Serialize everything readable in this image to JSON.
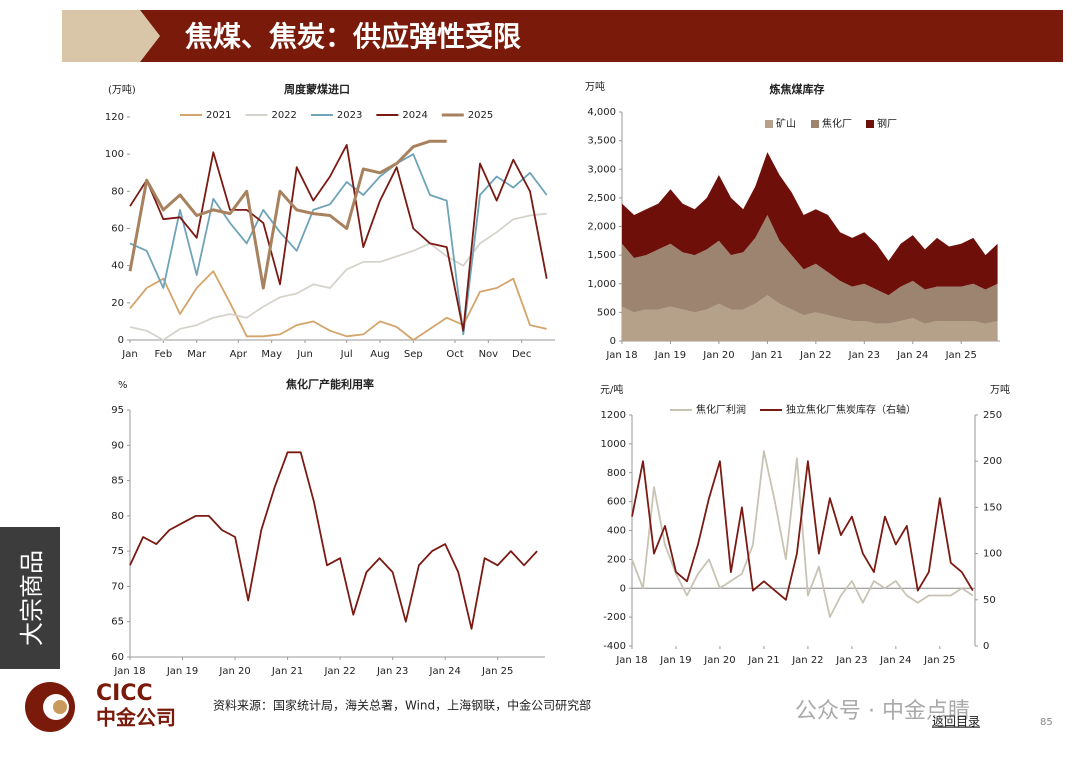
{
  "header": {
    "title": "焦煤、焦炭：供应弹性受限"
  },
  "side_label": "大宗商品",
  "chart_data": [
    {
      "type": "line",
      "title": "周度蒙煤进口",
      "y_label": "(万吨)",
      "x": [
        1,
        3,
        5,
        7,
        9,
        11,
        13,
        15,
        17,
        19,
        21,
        23,
        25,
        27,
        29,
        31,
        33,
        35,
        37,
        39,
        41,
        43,
        45,
        47,
        49,
        51
      ],
      "xlim": [
        1,
        52
      ],
      "xticks": [
        {
          "value": 1,
          "label": "Jan"
        },
        {
          "value": 5,
          "label": "Feb"
        },
        {
          "value": 9,
          "label": "Mar"
        },
        {
          "value": 14,
          "label": "Apr"
        },
        {
          "value": 18,
          "label": "May"
        },
        {
          "value": 22,
          "label": "Jun"
        },
        {
          "value": 27,
          "label": "Jul"
        },
        {
          "value": 31,
          "label": "Aug"
        },
        {
          "value": 35,
          "label": "Sep"
        },
        {
          "value": 40,
          "label": "Oct"
        },
        {
          "value": 44,
          "label": "Nov"
        },
        {
          "value": 48,
          "label": "Dec"
        }
      ],
      "ylim": [
        0,
        120
      ],
      "yticks": [
        0,
        20,
        40,
        60,
        80,
        100,
        120
      ],
      "series": [
        {
          "name": "2021",
          "color": "#d4a46a",
          "values": [
            17,
            28,
            33,
            14,
            28,
            37,
            20,
            2,
            2,
            3,
            8,
            10,
            5,
            2,
            3,
            10,
            7,
            0,
            6,
            12,
            8,
            26,
            28,
            33,
            8,
            6
          ]
        },
        {
          "name": "2022",
          "color": "#d6d3cc",
          "values": [
            7,
            5,
            0,
            6,
            8,
            12,
            14,
            12,
            18,
            23,
            25,
            30,
            28,
            38,
            42,
            42,
            45,
            48,
            52,
            45,
            40,
            52,
            58,
            65,
            67,
            68
          ]
        },
        {
          "name": "2023",
          "color": "#6fa3b8",
          "values": [
            52,
            48,
            28,
            70,
            35,
            76,
            63,
            52,
            70,
            58,
            48,
            70,
            73,
            85,
            78,
            88,
            95,
            100,
            78,
            75,
            3,
            78,
            88,
            82,
            90,
            78
          ]
        },
        {
          "name": "2024",
          "color": "#7a1a12",
          "values": [
            72,
            86,
            65,
            66,
            55,
            101,
            70,
            70,
            63,
            30,
            93,
            75,
            88,
            105,
            50,
            75,
            93,
            60,
            52,
            50,
            5,
            95,
            75,
            97,
            80,
            33
          ]
        },
        {
          "name": "2025",
          "color": "#a8825e",
          "values": [
            37,
            86,
            70,
            78,
            67,
            70,
            68,
            80,
            28,
            80,
            70,
            68,
            67,
            60,
            92,
            90,
            95,
            104,
            107,
            107,
            null,
            null,
            null,
            null,
            null,
            null
          ]
        }
      ]
    },
    {
      "type": "area",
      "title": "炼焦煤库存",
      "y_label": "万吨",
      "x": [
        2018,
        2018.25,
        2018.5,
        2018.75,
        2019,
        2019.25,
        2019.5,
        2019.75,
        2020,
        2020.25,
        2020.5,
        2020.75,
        2021,
        2021.25,
        2021.5,
        2021.75,
        2022,
        2022.25,
        2022.5,
        2022.75,
        2023,
        2023.25,
        2023.5,
        2023.75,
        2024,
        2024.25,
        2024.5,
        2024.75,
        2025,
        2025.25,
        2025.5,
        2025.75
      ],
      "xlim": [
        2018,
        2025.8
      ],
      "xticks": [
        {
          "value": 2018,
          "label": "Jan 18"
        },
        {
          "value": 2019,
          "label": "Jan 19"
        },
        {
          "value": 2020,
          "label": "Jan 20"
        },
        {
          "value": 2021,
          "label": "Jan 21"
        },
        {
          "value": 2022,
          "label": "Jan 22"
        },
        {
          "value": 2023,
          "label": "Jan 23"
        },
        {
          "value": 2024,
          "label": "Jan 24"
        },
        {
          "value": 2025,
          "label": "Jan 25"
        }
      ],
      "ylim": [
        0,
        4000
      ],
      "yticks": [
        0,
        500,
        {
          "value": 1000,
          "label": "1,000"
        },
        {
          "value": 1500,
          "label": "1,500"
        },
        {
          "value": 2000,
          "label": "2,000"
        },
        {
          "value": 2500,
          "label": "2,500"
        },
        {
          "value": 3000,
          "label": "3,000"
        },
        {
          "value": 3500,
          "label": "3,500"
        },
        {
          "value": 4000,
          "label": "4,000"
        }
      ],
      "series": [
        {
          "name": "矿山",
          "color": "#b5a08a",
          "values": [
            600,
            500,
            550,
            550,
            600,
            550,
            500,
            550,
            650,
            550,
            550,
            650,
            800,
            650,
            550,
            450,
            500,
            450,
            400,
            350,
            350,
            300,
            300,
            350,
            400,
            300,
            350,
            350,
            350,
            350,
            300,
            350
          ]
        },
        {
          "name": "焦化厂",
          "color": "#9c8471",
          "values": [
            1100,
            950,
            950,
            1050,
            1100,
            1000,
            1000,
            1050,
            1100,
            950,
            1000,
            1150,
            1400,
            1100,
            950,
            800,
            850,
            750,
            650,
            600,
            650,
            600,
            500,
            600,
            650,
            600,
            600,
            600,
            600,
            650,
            600,
            650
          ]
        },
        {
          "name": "钢厂",
          "color": "#6e0f0a",
          "values": [
            700,
            750,
            800,
            800,
            950,
            850,
            800,
            900,
            1150,
            1000,
            750,
            900,
            1100,
            1150,
            1100,
            950,
            950,
            1000,
            850,
            850,
            900,
            800,
            600,
            750,
            800,
            700,
            850,
            700,
            750,
            800,
            600,
            700
          ]
        }
      ]
    },
    {
      "type": "line",
      "title": "焦化厂产能利用率",
      "y_label": "%",
      "x": [
        2018,
        2018.25,
        2018.5,
        2018.75,
        2019,
        2019.25,
        2019.5,
        2019.75,
        2020,
        2020.25,
        2020.5,
        2020.75,
        2021,
        2021.25,
        2021.5,
        2021.75,
        2022,
        2022.25,
        2022.5,
        2022.75,
        2023,
        2023.25,
        2023.5,
        2023.75,
        2024,
        2024.25,
        2024.5,
        2024.75,
        2025,
        2025.25,
        2025.5,
        2025.75
      ],
      "xlim": [
        2018,
        2025.9
      ],
      "xticks": [
        {
          "value": 2018,
          "label": "Jan 18"
        },
        {
          "value": 2019,
          "label": "Jan 19"
        },
        {
          "value": 2020,
          "label": "Jan 20"
        },
        {
          "value": 2021,
          "label": "Jan 21"
        },
        {
          "value": 2022,
          "label": "Jan 22"
        },
        {
          "value": 2023,
          "label": "Jan 23"
        },
        {
          "value": 2024,
          "label": "Jan 24"
        },
        {
          "value": 2025,
          "label": "Jan 25"
        }
      ],
      "ylim": [
        60,
        95
      ],
      "yticks": [
        60,
        65,
        70,
        75,
        80,
        85,
        90,
        95
      ],
      "series": [
        {
          "name": "焦化厂产能利用率",
          "color": "#7a1a12",
          "values": [
            73,
            77,
            76,
            78,
            79,
            80,
            80,
            78,
            77,
            68,
            78,
            84,
            89,
            89,
            82,
            73,
            74,
            66,
            72,
            74,
            72,
            65,
            73,
            75,
            76,
            72,
            64,
            74,
            73,
            75,
            73,
            75
          ]
        }
      ]
    },
    {
      "type": "line",
      "y_label": "元/吨",
      "y2_label": "万吨",
      "x": [
        2018,
        2018.25,
        2018.5,
        2018.75,
        2019,
        2019.25,
        2019.5,
        2019.75,
        2020,
        2020.25,
        2020.5,
        2020.75,
        2021,
        2021.25,
        2021.5,
        2021.75,
        2022,
        2022.25,
        2022.5,
        2022.75,
        2023,
        2023.25,
        2023.5,
        2023.75,
        2024,
        2024.25,
        2024.5,
        2024.75,
        2025,
        2025.25,
        2025.5,
        2025.75
      ],
      "xlim": [
        2018,
        2025.8
      ],
      "xticks": [
        {
          "value": 2018,
          "label": "Jan 18"
        },
        {
          "value": 2019,
          "label": "Jan 19"
        },
        {
          "value": 2020,
          "label": "Jan 20"
        },
        {
          "value": 2021,
          "label": "Jan 21"
        },
        {
          "value": 2022,
          "label": "Jan 22"
        },
        {
          "value": 2023,
          "label": "Jan 23"
        },
        {
          "value": 2024,
          "label": "Jan 24"
        },
        {
          "value": 2025,
          "label": "Jan 25"
        }
      ],
      "ylim": [
        -400,
        1200
      ],
      "yticks": [
        -400,
        -200,
        0,
        200,
        400,
        600,
        800,
        1000,
        1200
      ],
      "y2lim": [
        0,
        250
      ],
      "y2ticks": [
        0,
        50,
        100,
        150,
        200,
        250
      ],
      "series": [
        {
          "name": "焦化厂利润",
          "color": "#c9c3b4",
          "values": [
            200,
            0,
            700,
            300,
            100,
            -50,
            100,
            200,
            0,
            50,
            100,
            300,
            950,
            600,
            200,
            900,
            -50,
            150,
            -200,
            -50,
            50,
            -100,
            50,
            0,
            50,
            -50,
            -100,
            -50,
            -50,
            -50,
            0,
            -50
          ]
        },
        {
          "name": "独立焦化厂焦炭库存（右轴）",
          "color": "#7a1a12",
          "axis": "y2",
          "values": [
            140,
            200,
            100,
            130,
            80,
            70,
            110,
            160,
            200,
            80,
            150,
            60,
            70,
            60,
            50,
            100,
            200,
            100,
            160,
            120,
            140,
            100,
            80,
            140,
            110,
            130,
            60,
            80,
            160,
            90,
            80,
            60
          ]
        }
      ]
    }
  ],
  "footer": {
    "source": "资料来源：国家统计局，海关总署，Wind，上海钢联，中金公司研究部",
    "logo_en": "CICC",
    "logo_cn": "中金公司",
    "watermark": "公众号 · 中金点睛",
    "back": "返回目录",
    "page": "85"
  }
}
